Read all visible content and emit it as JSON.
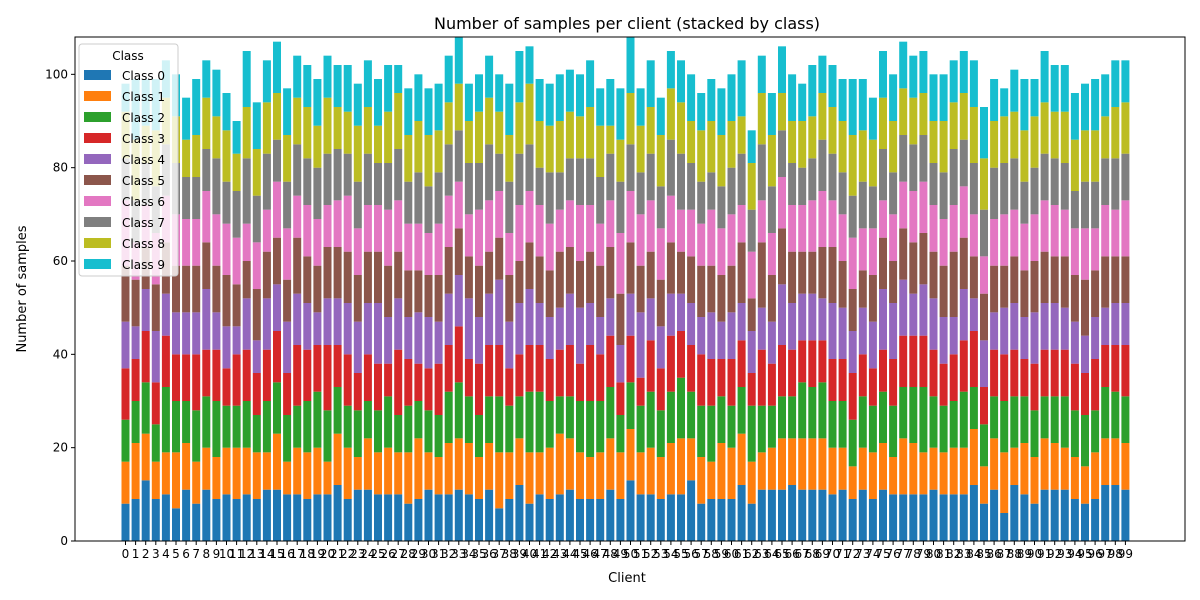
{
  "chart_data": {
    "type": "bar",
    "stacked": true,
    "title": "Number of samples per client (stacked by class)",
    "xlabel": "Client",
    "ylabel": "Number of samples",
    "ylim": [
      0,
      108
    ],
    "yticks": [
      0,
      20,
      40,
      60,
      80,
      100
    ],
    "legend_title": "Class",
    "legend_position": "upper-left",
    "categories": [
      "0",
      "1",
      "2",
      "3",
      "4",
      "5",
      "6",
      "7",
      "8",
      "9",
      "10",
      "11",
      "12",
      "13",
      "14",
      "15",
      "16",
      "17",
      "18",
      "19",
      "20",
      "21",
      "22",
      "23",
      "24",
      "25",
      "26",
      "27",
      "28",
      "29",
      "30",
      "31",
      "32",
      "33",
      "34",
      "35",
      "36",
      "37",
      "38",
      "39",
      "40",
      "41",
      "42",
      "43",
      "44",
      "45",
      "46",
      "47",
      "48",
      "49",
      "50",
      "51",
      "52",
      "53",
      "54",
      "55",
      "56",
      "57",
      "58",
      "59",
      "60",
      "61",
      "62",
      "63",
      "64",
      "65",
      "66",
      "67",
      "68",
      "69",
      "70",
      "71",
      "72",
      "73",
      "74",
      "75",
      "76",
      "77",
      "78",
      "79",
      "80",
      "81",
      "82",
      "83",
      "84",
      "85",
      "86",
      "87",
      "88",
      "89",
      "90",
      "91",
      "92",
      "93",
      "94",
      "95",
      "96",
      "97",
      "98",
      "99"
    ],
    "series": [
      {
        "name": "Class 0",
        "color": "#1f77b4",
        "values": [
          8,
          9,
          13,
          9,
          10,
          7,
          11,
          8,
          11,
          9,
          10,
          9,
          10,
          9,
          11,
          11,
          10,
          10,
          9,
          10,
          10,
          12,
          9,
          11,
          11,
          10,
          10,
          10,
          8,
          9,
          11,
          10,
          10,
          11,
          10,
          9,
          11,
          7,
          9,
          12,
          8,
          10,
          9,
          10,
          11,
          9,
          9,
          9,
          11,
          9,
          13,
          10,
          10,
          9,
          10,
          10,
          13,
          8,
          9,
          9,
          9,
          12,
          8,
          11,
          11,
          11,
          12,
          11,
          11,
          11,
          10,
          11,
          9,
          11,
          9,
          11,
          10,
          10,
          10,
          10,
          11,
          10,
          10,
          10,
          12,
          8,
          11,
          6,
          12,
          10,
          8,
          11,
          11,
          11,
          9,
          8,
          9,
          12,
          12,
          11
        ]
      },
      {
        "name": "Class 1",
        "color": "#ff7f0e",
        "values": [
          9,
          12,
          10,
          8,
          9,
          12,
          10,
          9,
          9,
          9,
          10,
          11,
          10,
          10,
          8,
          12,
          7,
          10,
          10,
          10,
          7,
          11,
          11,
          7,
          11,
          9,
          10,
          9,
          11,
          13,
          8,
          8,
          11,
          11,
          11,
          9,
          10,
          12,
          10,
          10,
          11,
          9,
          11,
          13,
          11,
          10,
          9,
          10,
          11,
          10,
          11,
          9,
          10,
          9,
          11,
          12,
          9,
          10,
          8,
          12,
          11,
          11,
          9,
          8,
          9,
          11,
          10,
          11,
          11,
          11,
          10,
          9,
          7,
          9,
          10,
          10,
          8,
          12,
          11,
          9,
          9,
          9,
          10,
          10,
          12,
          8,
          11,
          13,
          8,
          11,
          10,
          11,
          10,
          9,
          9,
          8,
          10,
          10,
          10,
          10
        ]
      },
      {
        "name": "Class 2",
        "color": "#2ca02c",
        "values": [
          9,
          9,
          11,
          8,
          14,
          11,
          9,
          11,
          11,
          12,
          9,
          9,
          10,
          8,
          11,
          11,
          10,
          9,
          11,
          12,
          11,
          10,
          9,
          10,
          8,
          9,
          11,
          8,
          10,
          8,
          9,
          9,
          11,
          12,
          10,
          9,
          10,
          12,
          10,
          9,
          13,
          13,
          10,
          8,
          9,
          11,
          12,
          11,
          11,
          8,
          10,
          10,
          12,
          10,
          11,
          13,
          10,
          11,
          12,
          10,
          9,
          10,
          12,
          10,
          9,
          9,
          9,
          12,
          11,
          12,
          10,
          10,
          10,
          11,
          10,
          11,
          11,
          11,
          12,
          14,
          11,
          10,
          10,
          12,
          9,
          9,
          9,
          11,
          11,
          10,
          10,
          9,
          10,
          11,
          10,
          11,
          9,
          11,
          10,
          10
        ]
      },
      {
        "name": "Class 3",
        "color": "#d62728",
        "values": [
          11,
          9,
          11,
          9,
          11,
          10,
          10,
          12,
          10,
          11,
          8,
          11,
          11,
          9,
          11,
          11,
          9,
          13,
          11,
          10,
          14,
          9,
          11,
          8,
          10,
          10,
          7,
          14,
          10,
          8,
          9,
          11,
          10,
          12,
          8,
          11,
          11,
          11,
          8,
          9,
          10,
          10,
          9,
          10,
          11,
          8,
          12,
          10,
          11,
          7,
          10,
          6,
          11,
          9,
          12,
          10,
          10,
          11,
          10,
          8,
          10,
          10,
          7,
          12,
          9,
          11,
          10,
          9,
          10,
          9,
          9,
          9,
          10,
          9,
          8,
          9,
          10,
          11,
          11,
          11,
          10,
          9,
          10,
          11,
          12,
          8,
          10,
          10,
          10,
          8,
          10,
          10,
          10,
          10,
          10,
          9,
          11,
          9,
          10,
          11
        ]
      },
      {
        "name": "Class 4",
        "color": "#9467bd",
        "values": [
          10,
          7,
          9,
          11,
          9,
          9,
          9,
          9,
          13,
          8,
          9,
          6,
          11,
          7,
          11,
          10,
          11,
          11,
          10,
          7,
          10,
          10,
          11,
          11,
          11,
          13,
          10,
          11,
          9,
          11,
          11,
          9,
          11,
          11,
          13,
          10,
          11,
          14,
          10,
          11,
          12,
          9,
          9,
          9,
          11,
          12,
          9,
          8,
          8,
          8,
          9,
          14,
          9,
          9,
          9,
          8,
          9,
          8,
          10,
          8,
          10,
          8,
          9,
          9,
          9,
          13,
          10,
          10,
          10,
          9,
          12,
          11,
          9,
          10,
          10,
          13,
          12,
          12,
          9,
          11,
          11,
          10,
          8,
          11,
          7,
          10,
          8,
          10,
          10,
          9,
          11,
          10,
          10,
          9,
          9,
          8,
          9,
          8,
          9,
          9
        ]
      },
      {
        "name": "Class 5",
        "color": "#8c564b",
        "values": [
          12,
          10,
          9,
          10,
          11,
          10,
          10,
          10,
          10,
          10,
          11,
          9,
          8,
          11,
          10,
          10,
          9,
          12,
          10,
          10,
          11,
          11,
          11,
          10,
          11,
          11,
          11,
          10,
          10,
          9,
          9,
          10,
          10,
          10,
          9,
          11,
          9,
          9,
          10,
          9,
          10,
          10,
          10,
          12,
          10,
          10,
          11,
          11,
          11,
          11,
          11,
          10,
          10,
          10,
          11,
          9,
          10,
          11,
          10,
          10,
          10,
          13,
          7,
          14,
          10,
          12,
          11,
          9,
          9,
          11,
          12,
          10,
          9,
          8,
          10,
          11,
          9,
          11,
          11,
          11,
          10,
          11,
          14,
          11,
          9,
          10,
          10,
          9,
          10,
          10,
          11,
          11,
          10,
          11,
          10,
          12,
          10,
          11,
          10,
          10
        ]
      },
      {
        "name": "Class 6",
        "color": "#e377c2",
        "values": [
          14,
          8,
          9,
          11,
          10,
          11,
          10,
          10,
          11,
          11,
          11,
          10,
          8,
          10,
          9,
          12,
          11,
          9,
          11,
          10,
          9,
          10,
          12,
          10,
          10,
          10,
          12,
          11,
          10,
          10,
          9,
          11,
          11,
          10,
          9,
          12,
          11,
          10,
          9,
          12,
          11,
          11,
          10,
          9,
          10,
          12,
          10,
          9,
          10,
          13,
          11,
          11,
          11,
          11,
          10,
          9,
          10,
          9,
          12,
          10,
          11,
          8,
          10,
          9,
          9,
          11,
          10,
          10,
          11,
          12,
          10,
          10,
          11,
          9,
          10,
          8,
          10,
          10,
          11,
          11,
          10,
          10,
          10,
          11,
          9,
          8,
          10,
          11,
          10,
          10,
          10,
          11,
          11,
          10,
          10,
          11,
          9,
          11,
          10,
          12
        ]
      },
      {
        "name": "Class 7",
        "color": "#7f7f7f",
        "values": [
          9,
          9,
          9,
          10,
          11,
          11,
          9,
          9,
          9,
          12,
          9,
          10,
          14,
          10,
          12,
          9,
          10,
          11,
          10,
          11,
          11,
          11,
          9,
          10,
          11,
          9,
          10,
          11,
          9,
          11,
          10,
          11,
          11,
          11,
          11,
          10,
          12,
          8,
          11,
          11,
          10,
          8,
          11,
          8,
          9,
          10,
          10,
          10,
          10,
          11,
          10,
          9,
          10,
          9,
          12,
          12,
          10,
          9,
          8,
          9,
          10,
          11,
          9,
          12,
          10,
          10,
          9,
          8,
          9,
          11,
          10,
          9,
          9,
          10,
          9,
          11,
          9,
          10,
          10,
          10,
          9,
          10,
          12,
          10,
          11,
          10,
          11,
          11,
          11,
          9,
          10,
          10,
          10,
          10,
          8,
          10,
          10,
          10,
          11,
          10
        ]
      },
      {
        "name": "Class 8",
        "color": "#bcbd22",
        "values": [
          10,
          13,
          8,
          12,
          10,
          10,
          8,
          9,
          11,
          9,
          11,
          8,
          11,
          10,
          11,
          10,
          10,
          10,
          11,
          9,
          12,
          9,
          9,
          12,
          10,
          8,
          11,
          12,
          10,
          11,
          11,
          9,
          9,
          10,
          9,
          11,
          10,
          9,
          10,
          11,
          13,
          10,
          10,
          11,
          10,
          9,
          11,
          11,
          6,
          9,
          11,
          10,
          10,
          11,
          11,
          11,
          9,
          11,
          11,
          11,
          10,
          8,
          10,
          11,
          11,
          8,
          9,
          10,
          9,
          10,
          10,
          11,
          13,
          11,
          10,
          11,
          11,
          10,
          10,
          9,
          9,
          11,
          10,
          10,
          12,
          11,
          10,
          10,
          10,
          11,
          11,
          11,
          10,
          11,
          11,
          11,
          11,
          9,
          11,
          11
        ]
      },
      {
        "name": "Class 9",
        "color": "#17becf",
        "values": [
          6,
          13,
          10,
          11,
          8,
          9,
          9,
          12,
          8,
          10,
          8,
          7,
          12,
          10,
          9,
          11,
          10,
          9,
          9,
          10,
          9,
          9,
          10,
          9,
          10,
          10,
          10,
          6,
          10,
          10,
          10,
          10,
          10,
          10,
          8,
          8,
          9,
          8,
          11,
          11,
          8,
          9,
          9,
          10,
          9,
          9,
          10,
          8,
          10,
          11,
          12,
          8,
          10,
          8,
          8,
          9,
          10,
          8,
          9,
          10,
          10,
          12,
          7,
          8,
          9,
          10,
          10,
          8,
          11,
          8,
          9,
          9,
          12,
          11,
          9,
          10,
          10,
          10,
          9,
          9,
          10,
          10,
          9,
          9,
          10,
          11,
          9,
          6,
          9,
          11,
          8,
          11,
          10,
          10,
          10,
          10,
          11,
          9,
          10,
          9
        ]
      }
    ]
  }
}
